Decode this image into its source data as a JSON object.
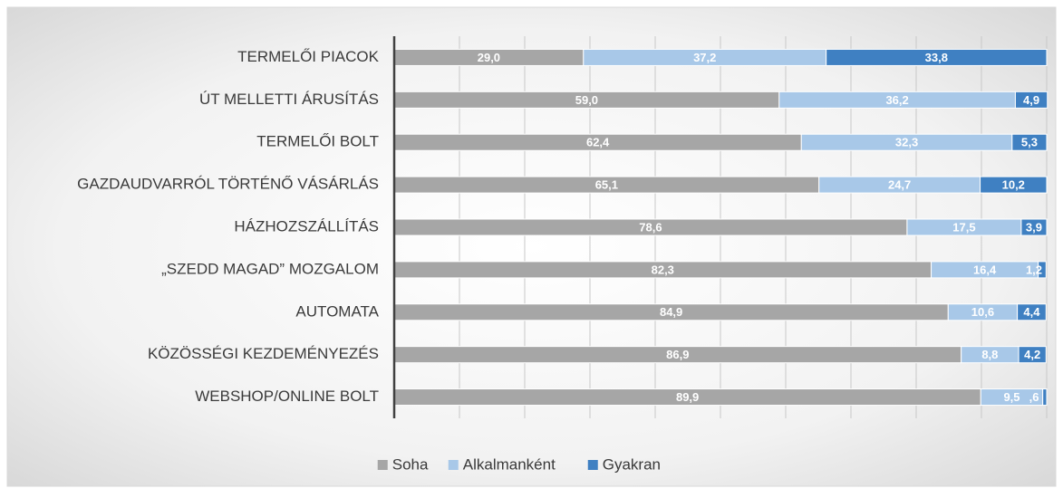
{
  "chart_data": {
    "type": "stacked_barh",
    "categories": [
      "TERMELŐI PIACOK",
      "ÚT MELLETTI ÁRUSÍTÁS",
      "TERMELŐI BOLT",
      "GAZDAUDVARRÓL TÖRTÉNŐ VÁSÁRLÁS",
      "HÁZHOZSZÁLLÍTÁS",
      "„SZEDD MAGAD” MOZGALOM",
      "AUTOMATA",
      "KÖZÖSSÉGI KEZDEMÉNYEZÉS",
      "WEBSHOP/ONLINE BOLT"
    ],
    "series": [
      {
        "name": "Soha",
        "color": "#a6a6a6",
        "values": [
          29.0,
          59.0,
          62.4,
          65.1,
          78.6,
          82.3,
          84.9,
          86.9,
          89.9
        ],
        "value_labels": [
          "29,0",
          "59,0",
          "62,4",
          "65,1",
          "78,6",
          "82,3",
          "84,9",
          "86,9",
          "89,9"
        ]
      },
      {
        "name": "Alkalmanként",
        "color": "#a8c8e8",
        "values": [
          37.2,
          36.2,
          32.3,
          24.7,
          17.5,
          16.4,
          10.6,
          8.8,
          9.5
        ],
        "value_labels": [
          "37,2",
          "36,2",
          "32,3",
          "24,7",
          "17,5",
          "16,4",
          "10,6",
          "8,8",
          "9,5"
        ]
      },
      {
        "name": "Gyakran",
        "color": "#3f80c2",
        "values": [
          33.8,
          4.9,
          5.3,
          10.2,
          3.9,
          1.2,
          4.4,
          4.2,
          0.6
        ],
        "value_labels": [
          "33,8",
          "4,9",
          "5,3",
          "10,2",
          "3,9",
          "1,2",
          "4,4",
          "4,2",
          ",6"
        ]
      }
    ],
    "xlim": [
      0,
      100
    ],
    "xticks": [
      0,
      10,
      20,
      30,
      40,
      50,
      60,
      70,
      80,
      90,
      100
    ],
    "grid": true,
    "legend": "bottom"
  }
}
